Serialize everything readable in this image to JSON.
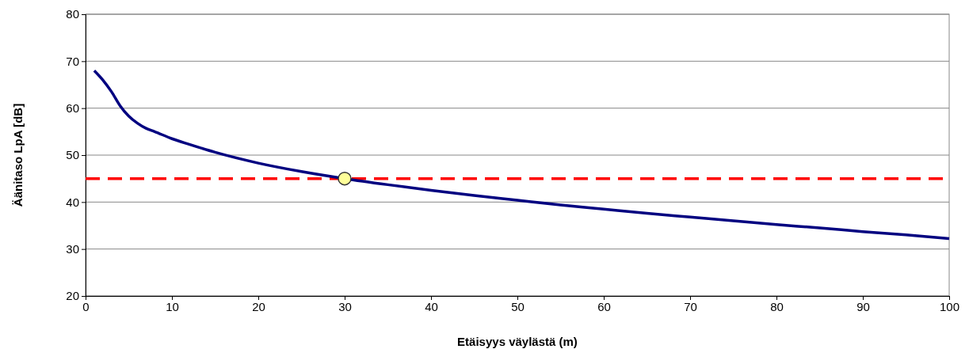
{
  "chart_data": {
    "type": "line",
    "xlabel": "Etäisyys väylästä (m)",
    "ylabel": "Äänitaso LpA [dB]",
    "xlim": [
      0,
      100
    ],
    "xticks": [
      0,
      10,
      20,
      30,
      40,
      50,
      60,
      70,
      80,
      90,
      100
    ],
    "ylim": [
      20,
      80
    ],
    "yticks": [
      20,
      30,
      40,
      50,
      60,
      70,
      80
    ],
    "grid": "y",
    "series": [
      {
        "color": "#000080",
        "marker": "none",
        "x": [
          1,
          2,
          3,
          4,
          5,
          6,
          7,
          8,
          10,
          12,
          15,
          20,
          25,
          30,
          35,
          40,
          45,
          50,
          55,
          60,
          65,
          70,
          75,
          80,
          85,
          90,
          95,
          100
        ],
        "values": [
          68,
          66,
          63.5,
          60.5,
          58.3,
          56.8,
          55.7,
          55,
          53.5,
          52.3,
          50.6,
          48.3,
          46.5,
          45,
          43.7,
          42.5,
          41.4,
          40.4,
          39.4,
          38.5,
          37.6,
          36.8,
          36,
          35.2,
          34.5,
          33.7,
          33,
          32.2
        ]
      },
      {
        "type": "scatter",
        "color": "#ffff99",
        "marker": "circle",
        "x": [
          30
        ],
        "values": [
          45
        ]
      }
    ],
    "ref_lines": [
      {
        "axis": "y",
        "value": 45,
        "color": "#ff0000",
        "line_style": "dashed"
      }
    ]
  }
}
